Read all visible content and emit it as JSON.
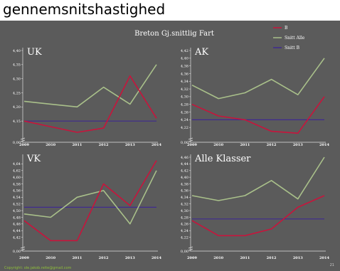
{
  "caption": "gennemsnitshastighed",
  "slide_title": "Breton Gj.snittlig Fart",
  "footer_left": "Copyright: ole.jakob.reite@gmail.com",
  "page_number": "21",
  "colors": {
    "B": "#c8143c",
    "Snitt Alle": "#a9c08a",
    "Snitt B": "#3f2b8f",
    "background": "#5b5b5b"
  },
  "legend": [
    {
      "label": "B",
      "color": "#c8143c"
    },
    {
      "label": "Snitt Alle",
      "color": "#a9c08a"
    },
    {
      "label": "Snitt B",
      "color": "#3f2b8f"
    }
  ],
  "chart_data": [
    {
      "type": "line",
      "title": "UK",
      "x": [
        "2009",
        "2010",
        "2011",
        "2012",
        "2013",
        "2014"
      ],
      "y_ticks": [
        "0,00",
        "4,15",
        "4,20",
        "4,25",
        "4,30",
        "4,35",
        "4,40"
      ],
      "ylim": [
        4.1,
        4.4
      ],
      "axis_break": true,
      "series": [
        {
          "name": "B",
          "values": [
            4.15,
            4.13,
            4.11,
            4.125,
            4.31,
            4.16
          ]
        },
        {
          "name": "Snitt Alle",
          "values": [
            4.22,
            4.21,
            4.2,
            4.27,
            4.21,
            4.35
          ]
        },
        {
          "name": "Snitt B",
          "values": [
            4.15,
            4.15,
            4.15,
            4.15,
            4.15,
            4.15
          ]
        }
      ]
    },
    {
      "type": "line",
      "title": "AK",
      "x": [
        "2009",
        "2010",
        "2011",
        "2012",
        "2013",
        "2014"
      ],
      "y_ticks": [
        "0,00",
        "4,22",
        "4,24",
        "4,26",
        "4,28",
        "4,30",
        "4,32",
        "4,34",
        "4,36",
        "4,38",
        "4,40",
        "4,42"
      ],
      "ylim": [
        4.2,
        4.42
      ],
      "axis_break": true,
      "series": [
        {
          "name": "B",
          "values": [
            4.28,
            4.25,
            4.24,
            4.21,
            4.205,
            4.3
          ]
        },
        {
          "name": "Snitt Alle",
          "values": [
            4.33,
            4.295,
            4.31,
            4.345,
            4.305,
            4.4
          ]
        },
        {
          "name": "Snitt B",
          "values": [
            4.24,
            4.24,
            4.24,
            4.24,
            4.24,
            4.24
          ]
        }
      ]
    },
    {
      "type": "line",
      "title": "VK",
      "x": [
        "2009",
        "2010",
        "2011",
        "2012",
        "2013",
        "2014"
      ],
      "y_ticks": [
        "0,00",
        "4,42",
        "4,44",
        "4,46",
        "4,48",
        "4,50",
        "4,52",
        "4,54",
        "4,56",
        "4,58",
        "4,60",
        "4,62",
        "4,64"
      ],
      "ylim": [
        4.4,
        4.66
      ],
      "axis_break": true,
      "series": [
        {
          "name": "B",
          "values": [
            4.47,
            4.41,
            4.41,
            4.58,
            4.515,
            4.65
          ]
        },
        {
          "name": "Snitt Alle",
          "values": [
            4.49,
            4.48,
            4.54,
            4.56,
            4.46,
            4.62
          ]
        },
        {
          "name": "Snitt B",
          "values": [
            4.51,
            4.51,
            4.51,
            4.51,
            4.51,
            4.51
          ]
        }
      ]
    },
    {
      "type": "line",
      "title": "Alle Klasser",
      "x": [
        "2009",
        "2010",
        "2011",
        "2012",
        "2013",
        "2014"
      ],
      "y_ticks": [
        "0,00",
        "4,22",
        "4,24",
        "4,26",
        "4,28",
        "4,30",
        "4,32",
        "4,34",
        "4,36",
        "4,38",
        "4,40",
        "4,42",
        "4,44",
        "4,46"
      ],
      "ylim": [
        4.2,
        4.46
      ],
      "axis_break": true,
      "series": [
        {
          "name": "B",
          "values": [
            4.27,
            4.225,
            4.225,
            4.245,
            4.31,
            4.345
          ]
        },
        {
          "name": "Snitt Alle",
          "values": [
            4.345,
            4.33,
            4.345,
            4.39,
            4.335,
            4.46
          ]
        },
        {
          "name": "Snitt B",
          "values": [
            4.275,
            4.275,
            4.275,
            4.275,
            4.275,
            4.275
          ]
        }
      ]
    }
  ]
}
